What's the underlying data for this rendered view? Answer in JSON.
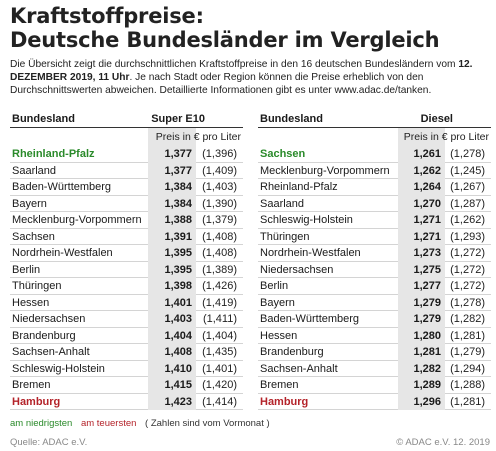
{
  "title": {
    "line1": "Kraftstoffpreise:",
    "line2": "Deutsche Bundesländer im Vergleich"
  },
  "intro": {
    "part1": "Die Übersicht zeigt die durchschnittlichen Kraftstoffpreise in den 16 deutschen Bundesländern vom ",
    "date": "12. DEZEMBER 2019, 11 Uhr",
    "part2": ". Je nach Stadt oder Region können die Preise erheblich von den Durchschnittswerten abweichen. Detaillierte Informationen gibt es unter www.adac.de/tanken."
  },
  "tables": {
    "super": {
      "col_state": "Bundesland",
      "col_fuel": "Super E10",
      "unit": "Preis in € pro Liter",
      "rows": [
        {
          "state": "Rheinland-Pfalz",
          "price": "1,377",
          "prev": "(1,396)",
          "flag": "low"
        },
        {
          "state": "Saarland",
          "price": "1,377",
          "prev": "(1,409)",
          "flag": ""
        },
        {
          "state": "Baden-Württemberg",
          "price": "1,384",
          "prev": "(1,403)",
          "flag": ""
        },
        {
          "state": "Bayern",
          "price": "1,384",
          "prev": "(1,390)",
          "flag": ""
        },
        {
          "state": "Mecklenburg-Vorpommern",
          "price": "1,388",
          "prev": "(1,379)",
          "flag": ""
        },
        {
          "state": "Sachsen",
          "price": "1,391",
          "prev": "(1,408)",
          "flag": ""
        },
        {
          "state": "Nordrhein-Westfalen",
          "price": "1,395",
          "prev": "(1,408)",
          "flag": ""
        },
        {
          "state": "Berlin",
          "price": "1,395",
          "prev": "(1,389)",
          "flag": ""
        },
        {
          "state": "Thüringen",
          "price": "1,398",
          "prev": "(1,426)",
          "flag": ""
        },
        {
          "state": "Hessen",
          "price": "1,401",
          "prev": "(1,419)",
          "flag": ""
        },
        {
          "state": "Niedersachsen",
          "price": "1,403",
          "prev": "(1,411)",
          "flag": ""
        },
        {
          "state": "Brandenburg",
          "price": "1,404",
          "prev": "(1,404)",
          "flag": ""
        },
        {
          "state": "Sachsen-Anhalt",
          "price": "1,408",
          "prev": "(1,435)",
          "flag": ""
        },
        {
          "state": "Schleswig-Holstein",
          "price": "1,410",
          "prev": "(1,401)",
          "flag": ""
        },
        {
          "state": "Bremen",
          "price": "1,415",
          "prev": "(1,420)",
          "flag": ""
        },
        {
          "state": "Hamburg",
          "price": "1,423",
          "prev": "(1,414)",
          "flag": "high"
        }
      ]
    },
    "diesel": {
      "col_state": "Bundesland",
      "col_fuel": "Diesel",
      "unit": "Preis in € pro Liter",
      "rows": [
        {
          "state": "Sachsen",
          "price": "1,261",
          "prev": "(1,278)",
          "flag": "low"
        },
        {
          "state": "Mecklenburg-Vorpommern",
          "price": "1,262",
          "prev": "(1,245)",
          "flag": ""
        },
        {
          "state": "Rheinland-Pfalz",
          "price": "1,264",
          "prev": "(1,267)",
          "flag": ""
        },
        {
          "state": "Saarland",
          "price": "1,270",
          "prev": "(1,287)",
          "flag": ""
        },
        {
          "state": "Schleswig-Holstein",
          "price": "1,271",
          "prev": "(1,262)",
          "flag": ""
        },
        {
          "state": "Thüringen",
          "price": "1,271",
          "prev": "(1,293)",
          "flag": ""
        },
        {
          "state": "Nordrhein-Westfalen",
          "price": "1,273",
          "prev": "(1,272)",
          "flag": ""
        },
        {
          "state": "Niedersachsen",
          "price": "1,275",
          "prev": "(1,272)",
          "flag": ""
        },
        {
          "state": "Berlin",
          "price": "1,277",
          "prev": "(1,272)",
          "flag": ""
        },
        {
          "state": "Bayern",
          "price": "1,279",
          "prev": "(1,278)",
          "flag": ""
        },
        {
          "state": "Baden-Württemberg",
          "price": "1,279",
          "prev": "(1,282)",
          "flag": ""
        },
        {
          "state": "Hessen",
          "price": "1,280",
          "prev": "(1,281)",
          "flag": ""
        },
        {
          "state": "Brandenburg",
          "price": "1,281",
          "prev": "(1,279)",
          "flag": ""
        },
        {
          "state": "Sachsen-Anhalt",
          "price": "1,282",
          "prev": "(1,294)",
          "flag": ""
        },
        {
          "state": "Bremen",
          "price": "1,289",
          "prev": "(1,288)",
          "flag": ""
        },
        {
          "state": "Hamburg",
          "price": "1,296",
          "prev": "(1,281)",
          "flag": "high"
        }
      ]
    }
  },
  "legend": {
    "low": "am niedrigsten",
    "high": "am teuersten",
    "note": "( Zahlen sind vom Vormonat )"
  },
  "footer": {
    "source": "Quelle: ADAC e.V.",
    "copyright": "© ADAC e.V. 12. 2019"
  },
  "colors": {
    "low": "#2a8a2a",
    "high": "#b4232a",
    "shade": "#e6e6e6"
  }
}
